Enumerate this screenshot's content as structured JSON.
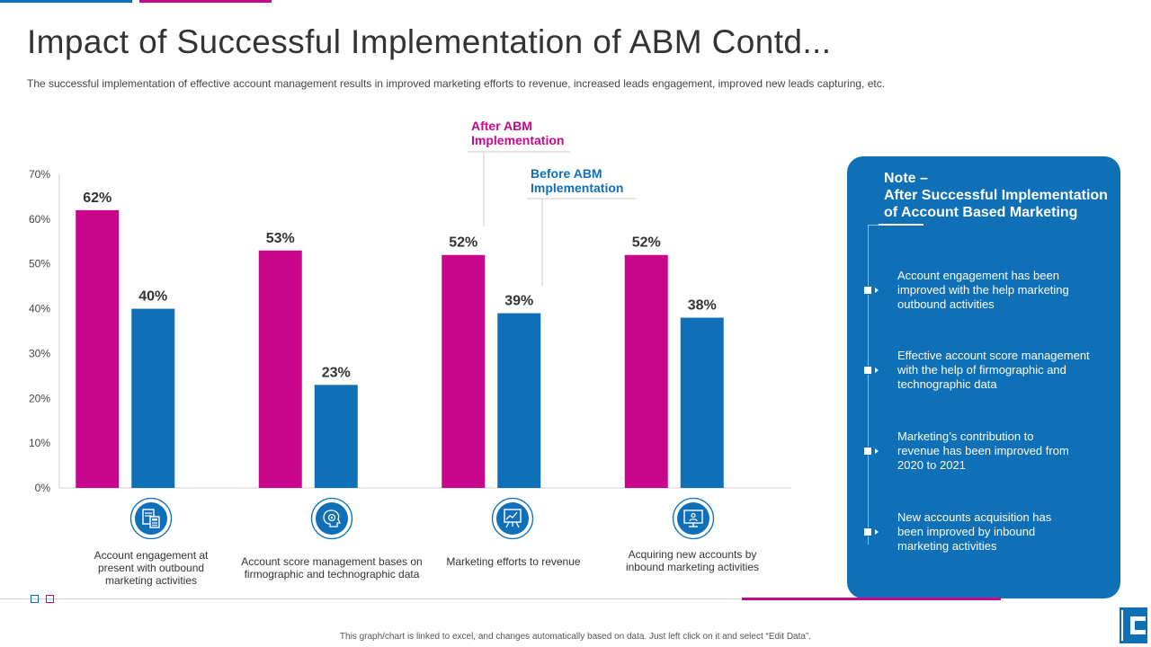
{
  "slide": {
    "title": "Impact of Successful Implementation of ABM Contd...",
    "subtitle": "The successful implementation of effective account management results in improved marketing efforts to revenue, increased leads engagement, improved new leads capturing, etc.",
    "footer": "This graph/chart is linked to excel, and changes automatically based on data. Just left click on it and select “Edit Data”."
  },
  "colors": {
    "after": "#c8068c",
    "before": "#0f6fb7",
    "panel": "#0f6fb7"
  },
  "chart_data": {
    "type": "bar",
    "title": "",
    "xlabel": "",
    "ylabel": "",
    "ylim": [
      0,
      70
    ],
    "ytick_step": 10,
    "ytick_labels": [
      "0%",
      "10%",
      "20%",
      "30%",
      "40%",
      "50%",
      "60%",
      "70%"
    ],
    "categories": [
      "Account engagement at present with outbound marketing activities",
      "Account score management bases on firmographic and technographic data",
      "Marketing efforts to revenue",
      "Acquiring new accounts by inbound marketing activities"
    ],
    "series": [
      {
        "name": "After ABM Implementation",
        "values": [
          62,
          53,
          52,
          52
        ],
        "labels": [
          "62%",
          "53%",
          "52%",
          "52%"
        ]
      },
      {
        "name": "Before ABM Implementation",
        "values": [
          40,
          23,
          39,
          38
        ],
        "labels": [
          "40%",
          "23%",
          "39%",
          "38%"
        ]
      }
    ],
    "annotations": {
      "after": [
        "After  ABM",
        "Implementation"
      ],
      "before": [
        "Before ABM",
        "Implementation"
      ]
    }
  },
  "category_labels": [
    [
      "Account engagement at",
      "present with outbound",
      "marketing activities"
    ],
    [
      "Account score management bases on",
      "firmographic and technographic data"
    ],
    [
      "Marketing efforts to revenue"
    ],
    [
      "Acquiring new accounts by",
      "inbound marketing activities"
    ]
  ],
  "category_icons": [
    "document-calculator-icon",
    "gear-brain-icon",
    "presentation-board-icon",
    "computer-monitor-icon"
  ],
  "note": {
    "title": [
      "Note –",
      "After  Successful Implementation",
      "of Account Based Marketing"
    ],
    "items": [
      [
        "Account engagement  has been",
        "improved  with the help marketing",
        "outbound activities"
      ],
      [
        "Effective account score management",
        "with the help of firmographic and",
        "technographic data"
      ],
      [
        "Marketing’s contribution to",
        "revenue  has been improved  from",
        "2020 to 2021"
      ],
      [
        "New accounts acquisition has",
        "been improved  by inbound",
        "marketing activities"
      ]
    ]
  }
}
